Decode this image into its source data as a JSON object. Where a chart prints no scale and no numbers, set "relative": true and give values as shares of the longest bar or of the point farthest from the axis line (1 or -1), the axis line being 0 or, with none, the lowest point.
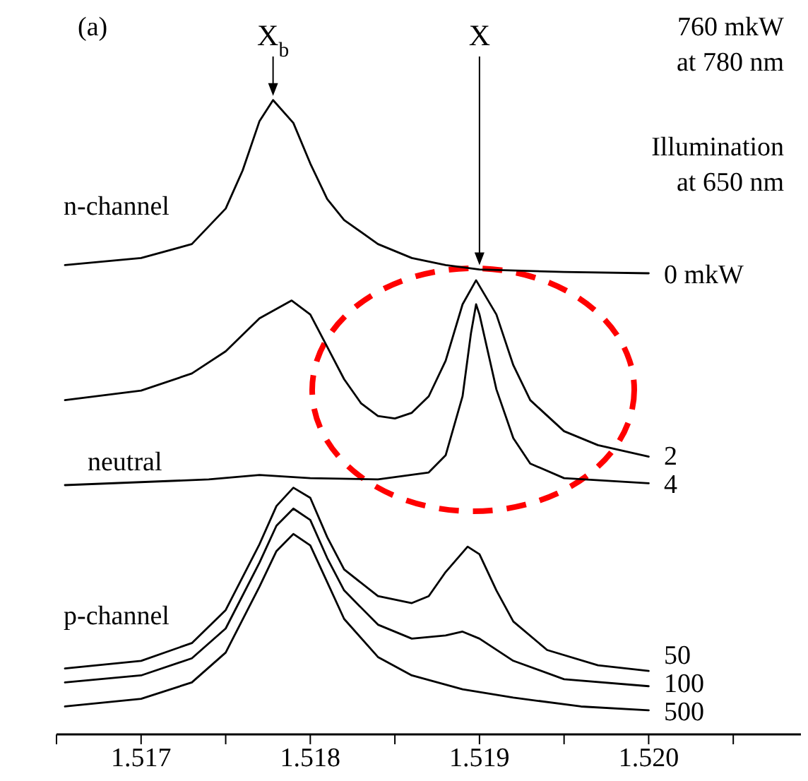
{
  "chart_data": {
    "type": "line",
    "relative": true,
    "marker": "none",
    "line_style": "solid",
    "xlim": [
      1.5165,
      1.5209
    ],
    "xticks": [
      {
        "value": 1.5165,
        "label": null
      },
      1.517,
      {
        "value": 1.5175,
        "label": null
      },
      1.518,
      {
        "value": 1.5185,
        "label": null
      },
      1.519,
      {
        "value": 1.5195,
        "label": null
      },
      {
        "value": 1.52,
        "label": "1.520"
      },
      {
        "value": 1.5205,
        "label": null
      }
    ],
    "annotations": [
      "(a)",
      {
        "text": "X$_{b}$",
        "x": 1.51778,
        "y": 1.0
      },
      {
        "text": "X",
        "x": 1.519,
        "y": 0.733
      },
      "760 mkW",
      "at 780 nm",
      "Illumination",
      "at 650 nm",
      "n-channel",
      "neutral",
      "p-channel"
    ],
    "series": [
      {
        "name": "0 mkW",
        "color": "#000000",
        "x": [
          1.51655,
          1.517,
          1.5173,
          1.5175,
          1.5176,
          1.5177,
          1.51778,
          1.5179,
          1.518,
          1.5181,
          1.5182,
          1.5184,
          1.5186,
          1.5188,
          1.519,
          1.5195,
          1.52
        ],
        "values": [
          0.74,
          0.751,
          0.773,
          0.829,
          0.889,
          0.967,
          1.0,
          0.964,
          0.9,
          0.844,
          0.811,
          0.773,
          0.751,
          0.74,
          0.733,
          0.729,
          0.727
        ]
      },
      {
        "name": "2",
        "color": "#000000",
        "x": [
          1.51655,
          1.517,
          1.5173,
          1.5175,
          1.5177,
          1.51789,
          1.518,
          1.5181,
          1.5182,
          1.5183,
          1.5184,
          1.5185,
          1.5186,
          1.5187,
          1.5188,
          1.5189,
          1.51898,
          1.5191,
          1.5192,
          1.5193,
          1.5195,
          1.5197,
          1.52
        ],
        "values": [
          0.527,
          0.542,
          0.569,
          0.604,
          0.656,
          0.684,
          0.662,
          0.611,
          0.56,
          0.522,
          0.502,
          0.498,
          0.507,
          0.533,
          0.589,
          0.678,
          0.716,
          0.662,
          0.582,
          0.527,
          0.478,
          0.456,
          0.438
        ]
      },
      {
        "name": "4",
        "color": "#000000",
        "x": [
          1.51655,
          1.5174,
          1.5177,
          1.518,
          1.5184,
          1.5187,
          1.5188,
          1.5189,
          1.51895,
          1.51898,
          1.519,
          1.5191,
          1.5192,
          1.5193,
          1.5195,
          1.52
        ],
        "values": [
          0.393,
          0.402,
          0.409,
          0.404,
          0.402,
          0.413,
          0.44,
          0.533,
          0.633,
          0.678,
          0.662,
          0.544,
          0.467,
          0.427,
          0.404,
          0.396
        ]
      },
      {
        "name": "50",
        "color": "#000000",
        "x": [
          1.51655,
          1.517,
          1.5173,
          1.5175,
          1.5177,
          1.5178,
          1.5179,
          1.518,
          1.5181,
          1.5182,
          1.5184,
          1.5186,
          1.5187,
          1.5188,
          1.51893,
          1.519,
          1.5191,
          1.5192,
          1.5194,
          1.5197,
          1.52
        ],
        "values": [
          0.104,
          0.116,
          0.144,
          0.196,
          0.3,
          0.36,
          0.389,
          0.373,
          0.311,
          0.26,
          0.218,
          0.207,
          0.218,
          0.256,
          0.296,
          0.284,
          0.227,
          0.178,
          0.133,
          0.109,
          0.1
        ]
      },
      {
        "name": "100",
        "color": "#000000",
        "x": [
          1.51655,
          1.517,
          1.5173,
          1.5175,
          1.5177,
          1.5178,
          1.5179,
          1.518,
          1.5181,
          1.5182,
          1.5184,
          1.5186,
          1.5188,
          1.5189,
          1.519,
          1.5192,
          1.5195,
          1.52
        ],
        "values": [
          0.082,
          0.093,
          0.12,
          0.167,
          0.271,
          0.329,
          0.356,
          0.338,
          0.278,
          0.227,
          0.173,
          0.151,
          0.156,
          0.162,
          0.151,
          0.116,
          0.087,
          0.076
        ]
      },
      {
        "name": "500",
        "color": "#000000",
        "x": [
          1.51655,
          1.517,
          1.5173,
          1.5175,
          1.5177,
          1.5178,
          1.5179,
          1.518,
          1.5181,
          1.5182,
          1.5184,
          1.5186,
          1.5189,
          1.5192,
          1.5196,
          1.52
        ],
        "values": [
          0.044,
          0.056,
          0.082,
          0.129,
          0.233,
          0.289,
          0.316,
          0.298,
          0.24,
          0.182,
          0.122,
          0.093,
          0.071,
          0.058,
          0.044,
          0.038
        ]
      }
    ]
  }
}
